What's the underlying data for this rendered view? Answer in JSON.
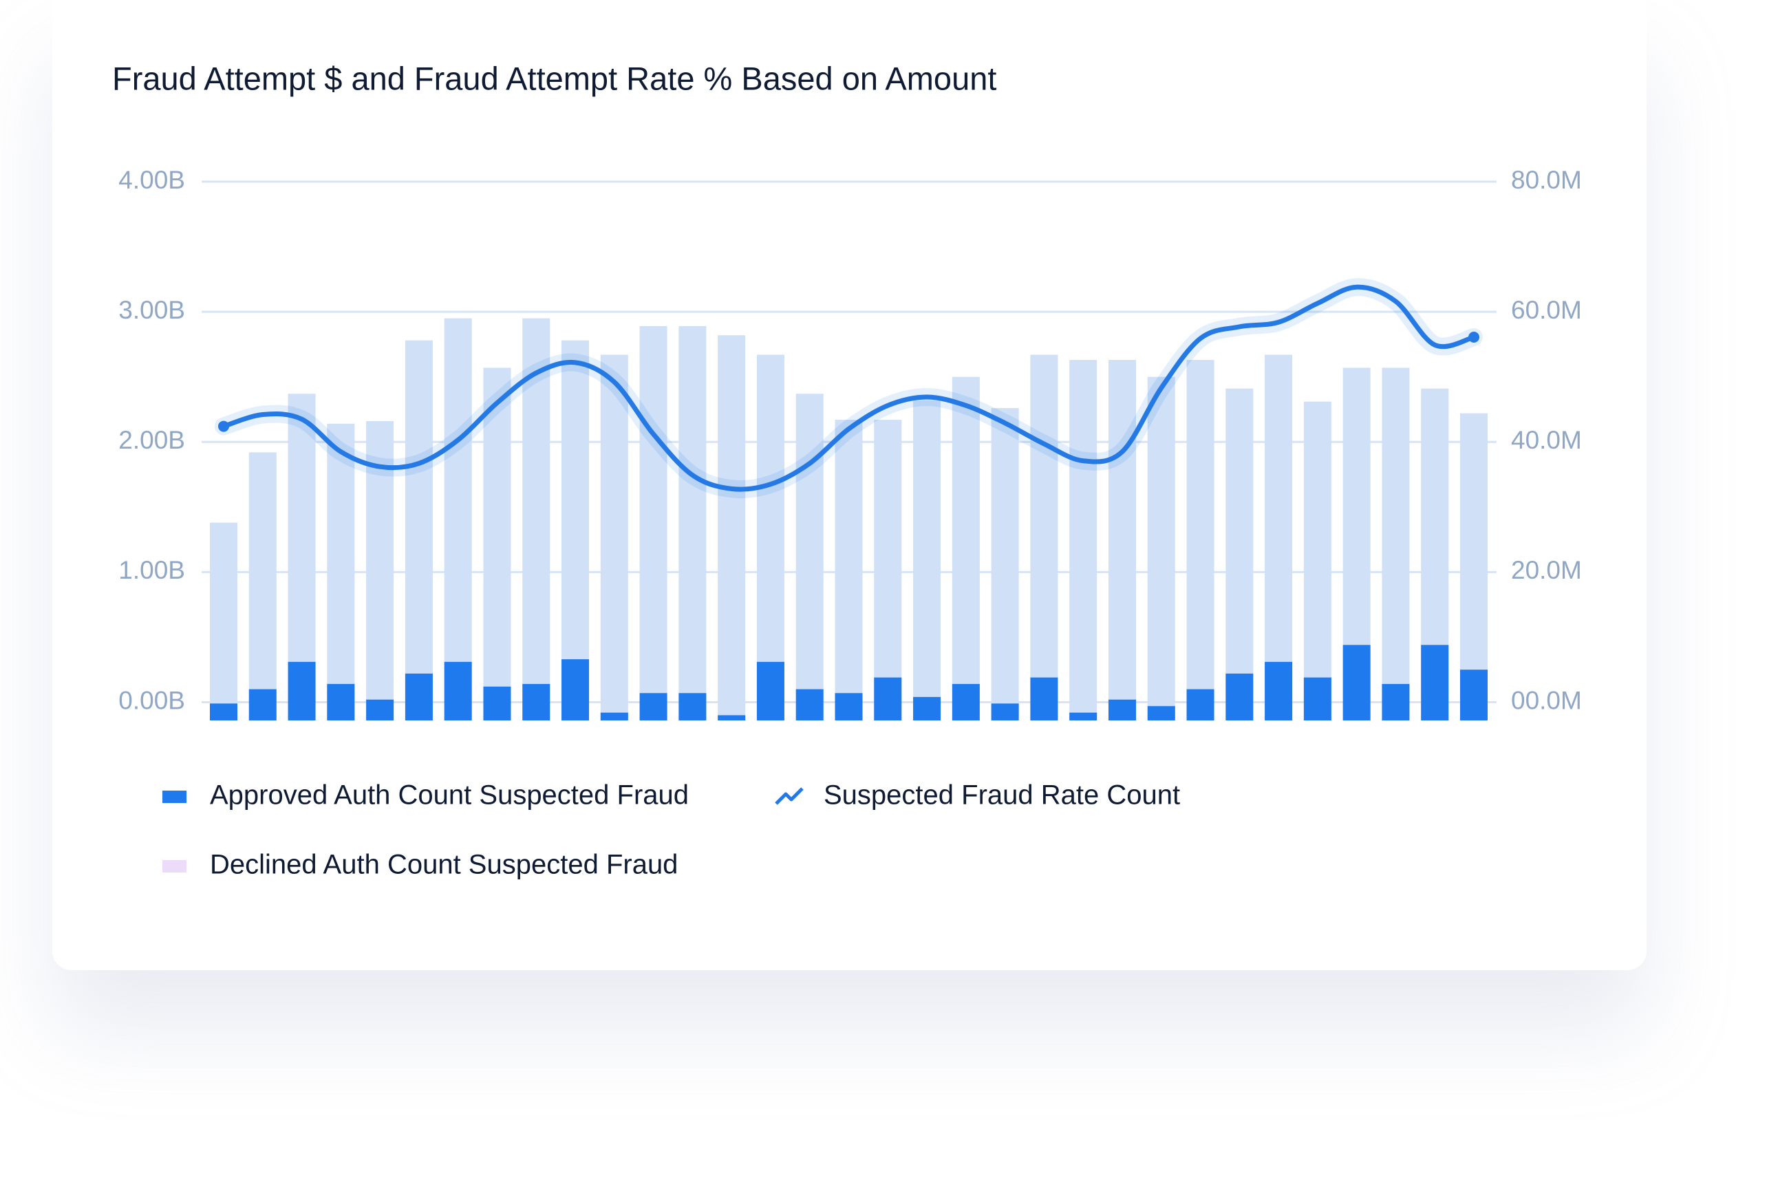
{
  "chart_data": {
    "type": "bar_line",
    "title": "Fraud Attempt $ and Fraud Attempt Rate % Based on Amount",
    "ylim": [
      -0.14,
      4
    ],
    "yticks": [
      {
        "value": 0,
        "label": "0.00B"
      },
      {
        "value": 1,
        "label": "1.00B"
      },
      {
        "value": 2,
        "label": "2.00B"
      },
      {
        "value": 3,
        "label": "3.00B"
      },
      {
        "value": 4,
        "label": "4.00B"
      }
    ],
    "y2lim": [
      -2.8,
      80
    ],
    "y2ticks": [
      {
        "value": 0,
        "label": "00.0M"
      },
      {
        "value": 20,
        "label": "20.0M"
      },
      {
        "value": 40,
        "label": "40.0M"
      },
      {
        "value": 60,
        "label": "60.0M"
      },
      {
        "value": 80,
        "label": "80.0M"
      }
    ],
    "grid": true,
    "series": [
      {
        "name": "Approved Auth Count Suspected Fraud",
        "type": "bar",
        "color": "#1f7aed",
        "values": [
          -0.01,
          0.1,
          0.31,
          0.14,
          0.02,
          0.22,
          0.31,
          0.12,
          0.14,
          0.33,
          -0.08,
          0.07,
          0.07,
          -0.1,
          0.31,
          0.1,
          0.07,
          0.19,
          0.04,
          0.14,
          -0.01,
          0.19,
          -0.08,
          0.02,
          -0.03,
          0.1,
          0.22,
          0.31,
          0.19,
          0.44,
          0.14,
          0.44,
          0.25
        ]
      },
      {
        "name": "Suspected Fraud Rate Count",
        "type": "line",
        "axis": "y2",
        "color": "#2479e4",
        "values": [
          42.4,
          44.2,
          43.5,
          38.5,
          36.2,
          36.7,
          40.3,
          46.0,
          50.6,
          52.2,
          49.2,
          41.2,
          34.9,
          32.8,
          33.5,
          36.7,
          42.0,
          45.6,
          46.9,
          45.6,
          42.9,
          39.7,
          37.1,
          38.5,
          48.3,
          55.9,
          57.7,
          58.4,
          61.3,
          63.8,
          61.6,
          54.9,
          56.1
        ]
      },
      {
        "name": "Declined Auth Count Suspected Fraud",
        "type": "bar",
        "color": "#cfe0f7",
        "legend_color": "#ecdcf9",
        "values": [
          1.38,
          1.92,
          2.37,
          2.14,
          2.16,
          2.78,
          2.95,
          2.57,
          2.95,
          2.78,
          2.67,
          2.89,
          2.89,
          2.82,
          2.67,
          2.37,
          2.17,
          2.17,
          2.32,
          2.5,
          2.26,
          2.67,
          2.63,
          2.63,
          2.5,
          2.63,
          2.41,
          2.67,
          2.31,
          2.57,
          2.57,
          2.41,
          2.22
        ]
      }
    ]
  }
}
